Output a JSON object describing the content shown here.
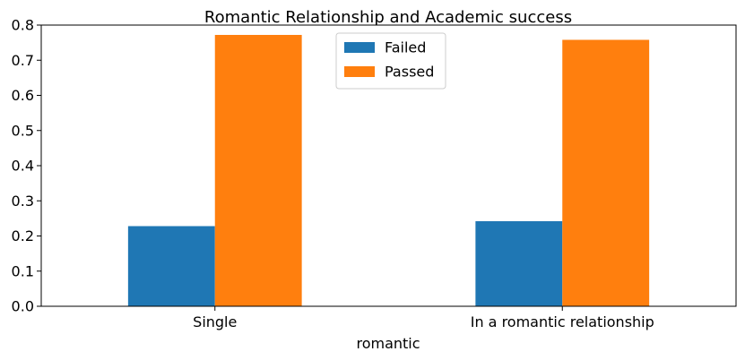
{
  "chart_data": {
    "type": "bar",
    "title": "Romantic Relationship and Academic success",
    "xlabel": "romantic",
    "ylabel": "",
    "categories": [
      "Single",
      "In a romantic relationship"
    ],
    "series": [
      {
        "name": "Failed",
        "color": "#1f77b4",
        "values": [
          0.228,
          0.242
        ]
      },
      {
        "name": "Passed",
        "color": "#ff7f0e",
        "values": [
          0.772,
          0.758
        ]
      }
    ],
    "ylim": [
      0,
      0.8
    ],
    "yticks": [
      "0.0",
      "0.1",
      "0.2",
      "0.3",
      "0.4",
      "0.5",
      "0.6",
      "0.7",
      "0.8"
    ],
    "grid": false,
    "legend_position": "top-center"
  }
}
